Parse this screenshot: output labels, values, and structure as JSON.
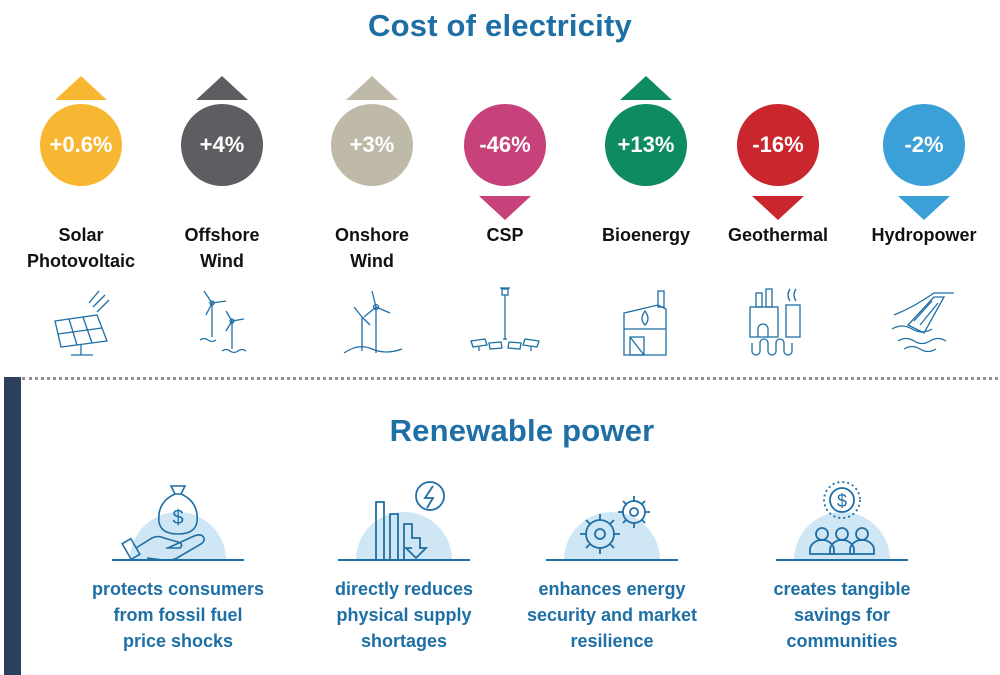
{
  "header": {
    "title": "Cost of electricity"
  },
  "technologies": [
    {
      "label_line1": "Solar",
      "label_line2": "Photovoltaic",
      "change": "+0.6%",
      "direction": "up",
      "color": "#f7b733",
      "arrow_color": "#f7b733",
      "icon": "solar-panel-icon"
    },
    {
      "label_line1": "Offshore",
      "label_line2": "Wind",
      "change": "+4%",
      "direction": "up",
      "color": "#5e5e62",
      "arrow_color": "#5e5e62",
      "icon": "offshore-wind-icon"
    },
    {
      "label_line1": "Onshore",
      "label_line2": "Wind",
      "change": "+3%",
      "direction": "up",
      "color": "#bfb9a7",
      "arrow_color": "#bfb9a7",
      "icon": "onshore-wind-icon"
    },
    {
      "label_line1": "CSP",
      "label_line2": "",
      "change": "-46%",
      "direction": "down",
      "color": "#c7417a",
      "arrow_color": "#c7417a",
      "icon": "csp-tower-icon"
    },
    {
      "label_line1": "Bioenergy",
      "label_line2": "",
      "change": "+13%",
      "direction": "up",
      "color": "#0f8b62",
      "arrow_color": "#0f8b62",
      "icon": "bioenergy-plant-icon"
    },
    {
      "label_line1": "Geothermal",
      "label_line2": "",
      "change": "-16%",
      "direction": "down",
      "color": "#c9262d",
      "arrow_color": "#c9262d",
      "icon": "geothermal-plant-icon"
    },
    {
      "label_line1": "Hydropower",
      "label_line2": "",
      "change": "-2%",
      "direction": "down",
      "color": "#3ba0d8",
      "arrow_color": "#3ba0d8",
      "icon": "hydropower-dam-icon"
    }
  ],
  "section": {
    "title": "Renewable power"
  },
  "benefits": [
    {
      "line1": "protects consumers",
      "line2": "from fossil fuel",
      "line3": "price shocks",
      "icon": "money-bag-hand-icon"
    },
    {
      "line1": "directly reduces",
      "line2": "physical supply",
      "line3": "shortages",
      "icon": "falling-bars-energy-icon"
    },
    {
      "line1": "enhances energy",
      "line2": "security and market",
      "line3": "resilience",
      "icon": "gears-icon"
    },
    {
      "line1": "creates tangible",
      "line2": "savings for",
      "line3": "communities",
      "icon": "community-savings-icon"
    }
  ],
  "colors": {
    "title": "#1e6fa5",
    "sidebar": "#2d3f5e",
    "icon_line": "#1e6fa5",
    "icon_bg": "#cfe6f5"
  }
}
